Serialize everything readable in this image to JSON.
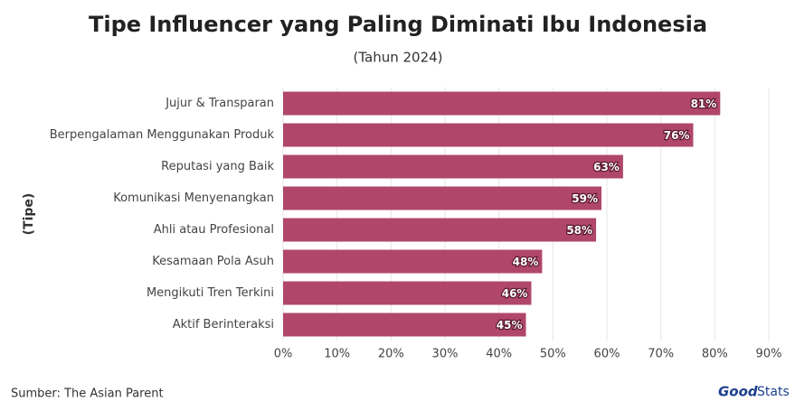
{
  "chart_data": {
    "type": "bar",
    "orientation": "horizontal",
    "title": "Tipe Influencer yang Paling Diminati Ibu Indonesia",
    "subtitle": "(Tahun 2024)",
    "y_axis_label": "(Tipe)",
    "categories": [
      "Jujur & Transparan",
      "Berpengalaman Menggunakan Produk",
      "Reputasi yang Baik",
      "Komunikasi Menyenangkan",
      "Ahli atau Profesional",
      "Kesamaan Pola Asuh",
      "Mengikuti Tren Terkini",
      "Aktif Berinteraksi"
    ],
    "values": [
      81,
      76,
      63,
      59,
      58,
      48,
      46,
      45
    ],
    "value_labels": [
      "81%",
      "76%",
      "63%",
      "59%",
      "58%",
      "48%",
      "46%",
      "45%"
    ],
    "color": "#b0476a",
    "xlim": [
      0,
      90
    ],
    "xticks": [
      {
        "value": 0,
        "label": "0%"
      },
      {
        "value": 10,
        "label": "10%"
      },
      {
        "value": 20,
        "label": "20%"
      },
      {
        "value": 30,
        "label": "30%"
      },
      {
        "value": 40,
        "label": "40%"
      },
      {
        "value": 50,
        "label": "50%"
      },
      {
        "value": 60,
        "label": "60%"
      },
      {
        "value": 70,
        "label": "70%"
      },
      {
        "value": 80,
        "label": "80%"
      },
      {
        "value": 90,
        "label": "90%"
      }
    ],
    "grid": true,
    "source": "Sumber: The Asian Parent",
    "logo": [
      "Good",
      "Stats"
    ]
  }
}
